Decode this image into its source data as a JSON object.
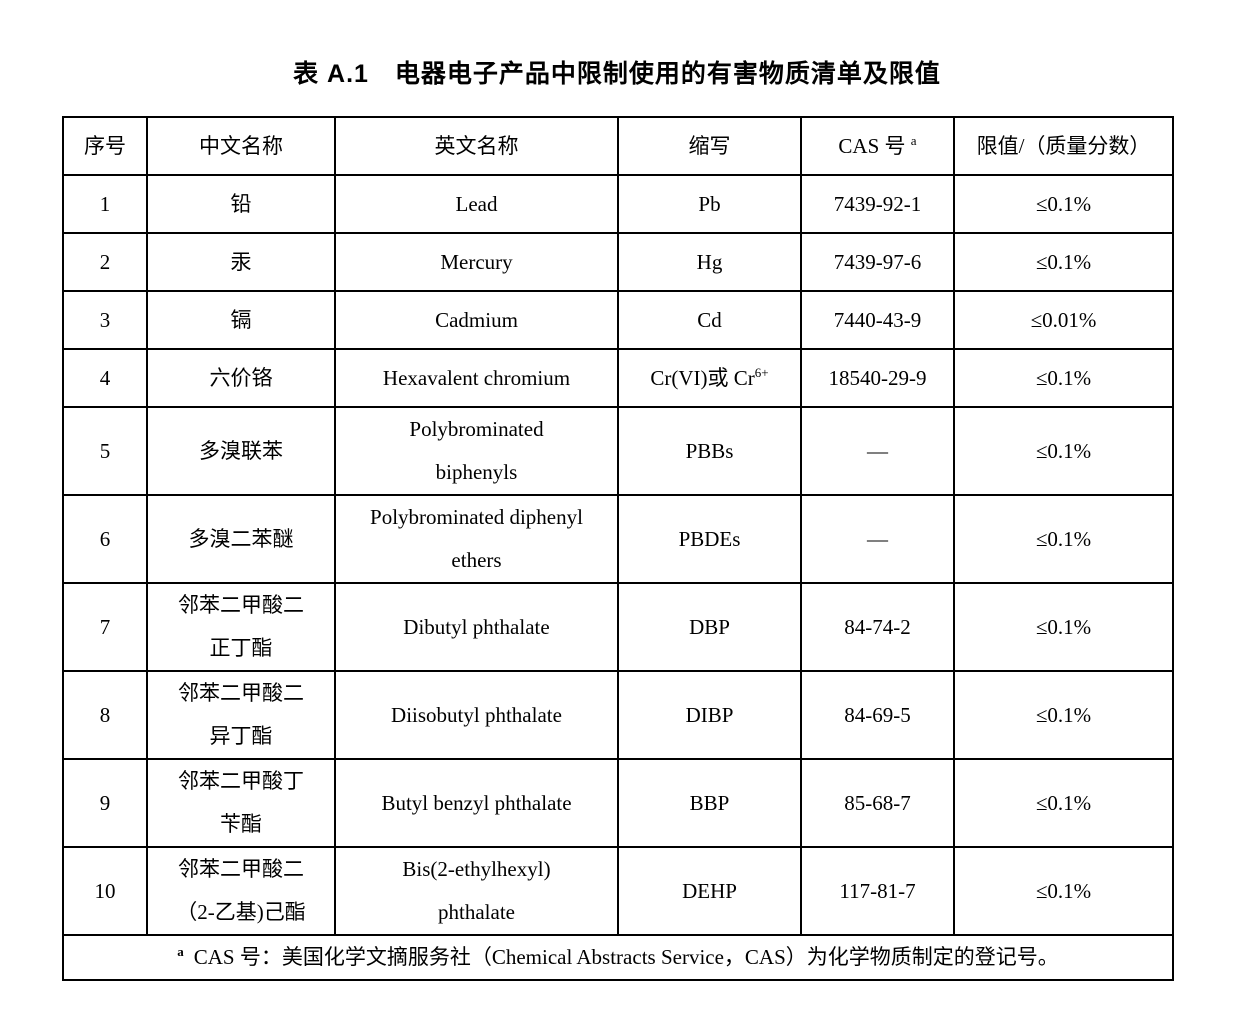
{
  "page": {
    "title": "表 A.1　电器电子产品中限制使用的有害物质清单及限值"
  },
  "table": {
    "headers": [
      "序号",
      "中文名称",
      "英文名称",
      "缩写",
      "CAS 号",
      "限值/（质量分数）"
    ],
    "cas_sup": "a",
    "rows": [
      {
        "no": "1",
        "cn": [
          "铅"
        ],
        "en": [
          "Lead"
        ],
        "abbr": "Pb",
        "cas": "7439-92-1",
        "limit": "≤0.1%"
      },
      {
        "no": "2",
        "cn": [
          "汞"
        ],
        "en": [
          "Mercury"
        ],
        "abbr": "Hg",
        "cas": "7439-97-6",
        "limit": "≤0.1%"
      },
      {
        "no": "3",
        "cn": [
          "镉"
        ],
        "en": [
          "Cadmium"
        ],
        "abbr": "Cd",
        "cas": "7440-43-9",
        "limit": "≤0.01%"
      },
      {
        "no": "4",
        "cn": [
          "六价铬"
        ],
        "en": [
          "Hexavalent chromium"
        ],
        "abbr": "Cr(VI)或 Cr",
        "abbr_sup": "6+",
        "cas": "18540-29-9",
        "limit": "≤0.1%"
      },
      {
        "no": "5",
        "cn": [
          "多溴联苯"
        ],
        "en": [
          "Polybrominated",
          "biphenyls"
        ],
        "abbr": "PBBs",
        "cas": "—",
        "limit": "≤0.1%"
      },
      {
        "no": "6",
        "cn": [
          "多溴二苯醚"
        ],
        "en": [
          "Polybrominated diphenyl",
          "ethers"
        ],
        "abbr": "PBDEs",
        "cas": "—",
        "limit": "≤0.1%"
      },
      {
        "no": "7",
        "cn": [
          "邻苯二甲酸二",
          "正丁酯"
        ],
        "en": [
          "Dibutyl phthalate"
        ],
        "abbr": "DBP",
        "cas": "84-74-2",
        "limit": "≤0.1%"
      },
      {
        "no": "8",
        "cn": [
          "邻苯二甲酸二",
          "异丁酯"
        ],
        "en": [
          "Diisobutyl phthalate"
        ],
        "abbr": "DIBP",
        "cas": "84-69-5",
        "limit": "≤0.1%"
      },
      {
        "no": "9",
        "cn": [
          "邻苯二甲酸丁",
          "苄酯"
        ],
        "en": [
          "Butyl benzyl phthalate"
        ],
        "abbr": "BBP",
        "cas": "85-68-7",
        "limit": "≤0.1%"
      },
      {
        "no": "10",
        "cn": [
          "邻苯二甲酸二",
          "（2-乙基)己酯"
        ],
        "en": [
          "Bis(2-ethylhexyl)",
          "phthalate"
        ],
        "abbr": "DEHP",
        "cas": "117-81-7",
        "limit": "≤0.1%"
      }
    ],
    "footnote": {
      "sup": "a",
      "text": "CAS 号：美国化学文摘服务社（Chemical Abstracts Service，CAS）为化学物质制定的登记号。"
    }
  }
}
